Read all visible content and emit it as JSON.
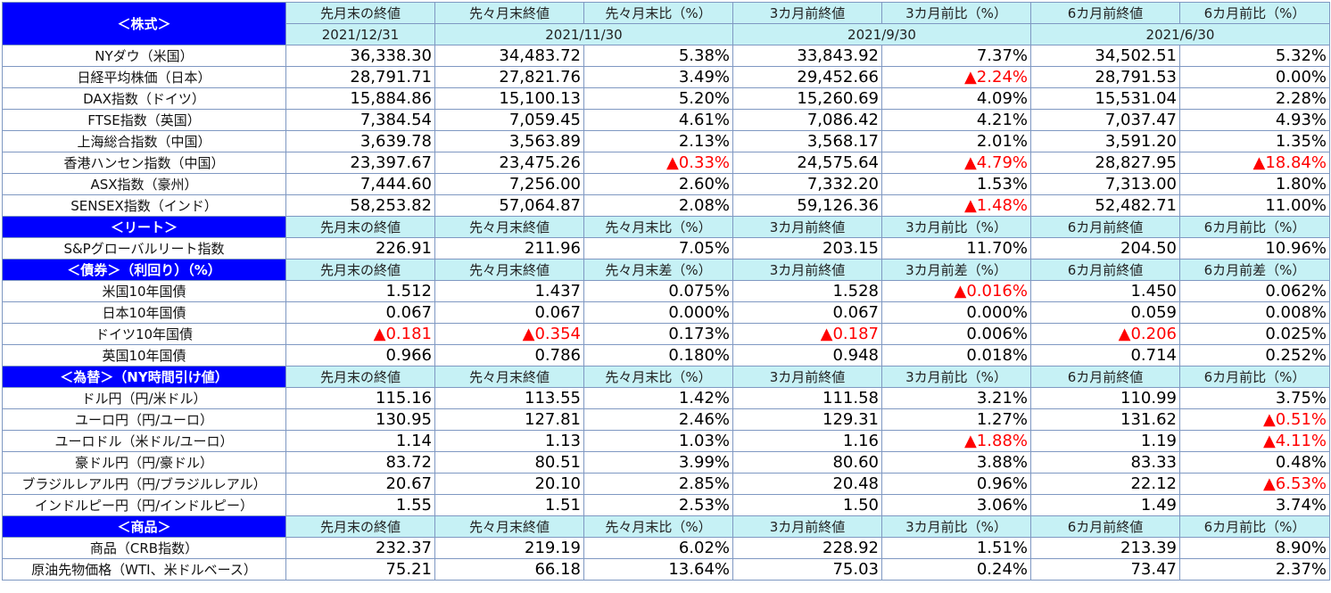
{
  "column_headers": [
    "先月末の終値",
    "先々月末終値",
    "先々月末比（%）",
    "3カ月前終値",
    "3カ月前比（%）",
    "6カ月前終値",
    "6カ月前比（%）"
  ],
  "dates": {
    "last_month": "2021/12/31",
    "two_months": "2021/11/30",
    "three_months": "2021/9/30",
    "six_months": "2021/6/30"
  },
  "negative_color": "#ff0000",
  "sections": [
    {
      "id": "stocks",
      "title": "＜株式＞",
      "headers": [
        "先月末の終値",
        "先々月末終値",
        "先々月末比（%）",
        "3カ月前終値",
        "3カ月前比（%）",
        "6カ月前終値",
        "6カ月前比（%）"
      ],
      "rows": [
        {
          "name": "NYダウ（米国）",
          "values": [
            "36,338.30",
            "34,483.72",
            "5.38%",
            "33,843.92",
            "7.37%",
            "34,502.51",
            "5.32%"
          ]
        },
        {
          "name": "日経平均株価（日本）",
          "values": [
            "28,791.71",
            "27,821.76",
            "3.49%",
            "29,452.66",
            "▲2.24%",
            "28,791.53",
            "0.00%"
          ]
        },
        {
          "name": "DAX指数（ドイツ）",
          "values": [
            "15,884.86",
            "15,100.13",
            "5.20%",
            "15,260.69",
            "4.09%",
            "15,531.04",
            "2.28%"
          ]
        },
        {
          "name": "FTSE指数（英国）",
          "values": [
            "7,384.54",
            "7,059.45",
            "4.61%",
            "7,086.42",
            "4.21%",
            "7,037.47",
            "4.93%"
          ]
        },
        {
          "name": "上海総合指数（中国）",
          "values": [
            "3,639.78",
            "3,563.89",
            "2.13%",
            "3,568.17",
            "2.01%",
            "3,591.20",
            "1.35%"
          ]
        },
        {
          "name": "香港ハンセン指数（中国）",
          "values": [
            "23,397.67",
            "23,475.26",
            "▲0.33%",
            "24,575.64",
            "▲4.79%",
            "28,827.95",
            "▲18.84%"
          ]
        },
        {
          "name": "ASX指数（豪州）",
          "values": [
            "7,444.60",
            "7,256.00",
            "2.60%",
            "7,332.20",
            "1.53%",
            "7,313.00",
            "1.80%"
          ]
        },
        {
          "name": "SENSEX指数（インド）",
          "values": [
            "58,253.82",
            "57,064.87",
            "2.08%",
            "59,126.36",
            "▲1.48%",
            "52,482.71",
            "11.00%"
          ]
        }
      ]
    },
    {
      "id": "reit",
      "title": "＜リート＞",
      "headers": [
        "先月末の終値",
        "先々月末終値",
        "先々月末比（%）",
        "3カ月前終値",
        "3カ月前比（%）",
        "6カ月前終値",
        "6カ月前比（%）"
      ],
      "rows": [
        {
          "name": "S&Pグローバルリート指数",
          "values": [
            "226.91",
            "211.96",
            "7.05%",
            "203.15",
            "11.70%",
            "204.50",
            "10.96%"
          ]
        }
      ]
    },
    {
      "id": "bonds",
      "title": "＜債券＞（利回り）（%）",
      "headers": [
        "先月末の終値",
        "先々月末終値",
        "先々月末差（%）",
        "3カ月前終値",
        "3カ月前差（%）",
        "6カ月前終値",
        "6カ月前差（%）"
      ],
      "rows": [
        {
          "name": "米国10年国債",
          "values": [
            "1.512",
            "1.437",
            "0.075%",
            "1.528",
            "▲0.016%",
            "1.450",
            "0.062%"
          ]
        },
        {
          "name": "日本10年国債",
          "values": [
            "0.067",
            "0.067",
            "0.000%",
            "0.067",
            "0.000%",
            "0.059",
            "0.008%"
          ]
        },
        {
          "name": "ドイツ10年国債",
          "values": [
            "▲0.181",
            "▲0.354",
            "0.173%",
            "▲0.187",
            "0.006%",
            "▲0.206",
            "0.025%"
          ]
        },
        {
          "name": "英国10年国債",
          "values": [
            "0.966",
            "0.786",
            "0.180%",
            "0.948",
            "0.018%",
            "0.714",
            "0.252%"
          ]
        }
      ]
    },
    {
      "id": "fx",
      "title": "＜為替＞（NY時間引け値）",
      "headers": [
        "先月末の終値",
        "先々月末終値",
        "先々月末比（%）",
        "3カ月前終値",
        "3カ月前比（%）",
        "6カ月前終値",
        "6カ月前比（%）"
      ],
      "rows": [
        {
          "name": "ドル円（円/米ドル）",
          "values": [
            "115.16",
            "113.55",
            "1.42%",
            "111.58",
            "3.21%",
            "110.99",
            "3.75%"
          ]
        },
        {
          "name": "ユーロ円（円/ユーロ）",
          "values": [
            "130.95",
            "127.81",
            "2.46%",
            "129.31",
            "1.27%",
            "131.62",
            "▲0.51%"
          ]
        },
        {
          "name": "ユーロドル（米ドル/ユーロ）",
          "values": [
            "1.14",
            "1.13",
            "1.03%",
            "1.16",
            "▲1.88%",
            "1.19",
            "▲4.11%"
          ]
        },
        {
          "name": "豪ドル円（円/豪ドル）",
          "values": [
            "83.72",
            "80.51",
            "3.99%",
            "80.60",
            "3.88%",
            "83.33",
            "0.48%"
          ]
        },
        {
          "name": "ブラジルレアル円（円/ブラジルレアル）",
          "values": [
            "20.67",
            "20.10",
            "2.85%",
            "20.48",
            "0.96%",
            "22.12",
            "▲6.53%"
          ]
        },
        {
          "name": "インドルピー円（円/インドルピー）",
          "values": [
            "1.55",
            "1.51",
            "2.53%",
            "1.50",
            "3.06%",
            "1.49",
            "3.74%"
          ]
        }
      ]
    },
    {
      "id": "commodities",
      "title": "＜商品＞",
      "headers": [
        "先月末の終値",
        "先々月末終値",
        "先々月末比（%）",
        "3カ月前終値",
        "3カ月前比（%）",
        "6カ月前終値",
        "6カ月前比（%）"
      ],
      "rows": [
        {
          "name": "商品（CRB指数）",
          "values": [
            "232.37",
            "219.19",
            "6.02%",
            "228.92",
            "1.51%",
            "213.39",
            "8.90%"
          ]
        },
        {
          "name": "原油先物価格（WTI、米ドルベース）",
          "values": [
            "75.21",
            "66.18",
            "13.64%",
            "75.03",
            "0.24%",
            "73.47",
            "2.37%"
          ]
        }
      ]
    }
  ]
}
